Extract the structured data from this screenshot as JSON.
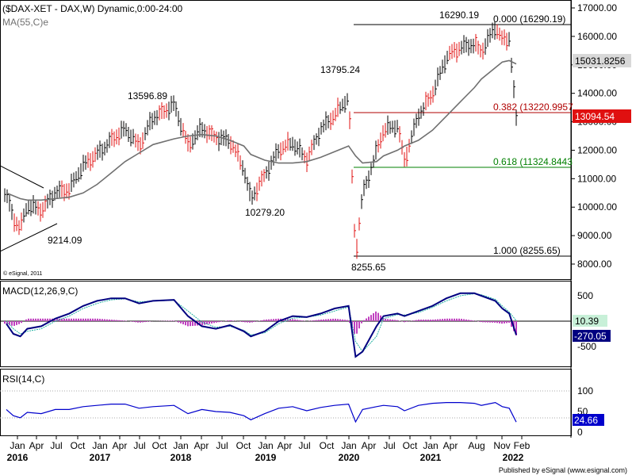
{
  "header": {
    "main_title": "($DAX-XET - DAX,W) Dynamic,0:00-24:00",
    "ma_label": "MA(55,C)e",
    "copyright": "© eSignal, 2011"
  },
  "footer": {
    "publisher": "Published by eSignal (www.esignal.com)"
  },
  "colors": {
    "up_bar": "#000000",
    "down_bar": "#e01010",
    "ma_line": "#707070",
    "macd_line": "#000080",
    "signal_line": "#20b0a0",
    "histogram": "#c040c0",
    "rsi_line": "#0000cc",
    "fib_top": "#000000",
    "fib_382": "#b00000",
    "fib_618": "#008000",
    "price_tag_bg": "#e01010",
    "macd_tag_bg": "#000080",
    "signal_tag_bg": "#c8f0d8",
    "rsi_tag_bg": "#0000cc"
  },
  "price_axis": {
    "ticks": [
      "17000.00",
      "16000.00",
      "15000.00",
      "14000.00",
      "13000.00",
      "12000.00",
      "11000.00",
      "10000.00",
      "9000.00",
      "8000.00"
    ]
  },
  "macd_axis": {
    "ticks": [
      "500",
      "-500"
    ]
  },
  "rsi_axis": {
    "ticks": [
      "100",
      "50",
      "0"
    ]
  },
  "time_axis": {
    "months": [
      "Jan",
      "Apr",
      "Jul",
      "Oct",
      "Jan",
      "Apr",
      "Jul",
      "Oct",
      "Jan",
      "Apr",
      "Jul",
      "Oct",
      "Jan",
      "Apr",
      "Jul",
      "Oct",
      "Jan",
      "Apr",
      "Jul",
      "Oct",
      "Jan",
      "Apr",
      "Aug",
      "Nov",
      "Feb"
    ],
    "years": [
      "2016",
      "2017",
      "2018",
      "2019",
      "2020",
      "2021",
      "2022"
    ]
  },
  "price_panel": {
    "annotations": [
      "16290.19",
      "13596.89",
      "13795.24",
      "10279.20",
      "9214.09",
      "8255.65"
    ],
    "fib_levels": [
      {
        "ratio": "0.000",
        "value": 16290.19,
        "label": "0.000 (16290.19)"
      },
      {
        "ratio": "0.382",
        "value": 13220.9957,
        "label": "0.382 (13220.9957"
      },
      {
        "ratio": "0.618",
        "value": 11324.8443,
        "label": "0.618 (11324.8443"
      },
      {
        "ratio": "1.000",
        "value": 8255.65,
        "label": "1.000 (8255.65)"
      }
    ],
    "current_tags": {
      "ma": "15031.8256",
      "price": "13094.54"
    }
  },
  "macd_panel": {
    "label": "MACD(12,26,9,C)",
    "tags": {
      "signal": "10.39",
      "macd": "-270.05"
    }
  },
  "rsi_panel": {
    "label": "RSI(14,C)",
    "tag": "24.66"
  },
  "chart_data": {
    "type": "line",
    "title": "($DAX-XET - DAX,W) Dynamic,0:00-24:00",
    "x_dates": [
      "2016-01",
      "2016-02",
      "2016-03",
      "2016-04",
      "2016-06",
      "2016-08",
      "2016-10",
      "2016-12",
      "2017-02",
      "2017-04",
      "2017-06",
      "2017-08",
      "2017-10",
      "2018-01",
      "2018-03",
      "2018-05",
      "2018-07",
      "2018-09",
      "2018-11",
      "2018-12",
      "2019-02",
      "2019-04",
      "2019-06",
      "2019-08",
      "2019-10",
      "2019-12",
      "2020-02",
      "2020-03",
      "2020-04",
      "2020-06",
      "2020-07",
      "2020-09",
      "2020-10",
      "2020-12",
      "2021-02",
      "2021-04",
      "2021-06",
      "2021-08",
      "2021-09",
      "2021-11",
      "2021-12",
      "2022-01",
      "2022-02"
    ],
    "price_close": [
      10500,
      9600,
      9214.09,
      10000,
      9900,
      10600,
      10600,
      11400,
      11900,
      12400,
      12700,
      12100,
      13200,
      13596.89,
      12100,
      12800,
      12500,
      12300,
      11300,
      10279.2,
      11200,
      12000,
      12200,
      11700,
      12800,
      13200,
      13795.24,
      8255.65,
      10500,
      12000,
      12700,
      12800,
      11600,
      13300,
      14000,
      15200,
      15600,
      15800,
      15500,
      16290.19,
      15800,
      15900,
      13094.54
    ],
    "ma55_close": [
      10500,
      10400,
      10300,
      10250,
      10250,
      10300,
      10350,
      10500,
      10800,
      11200,
      11600,
      11900,
      12200,
      12400,
      12500,
      12550,
      12500,
      12350,
      12150,
      11850,
      11650,
      11550,
      11550,
      11600,
      11750,
      11950,
      12150,
      11800,
      11550,
      11600,
      11800,
      12000,
      12150,
      12350,
      12700,
      13200,
      13700,
      14200,
      14500,
      14900,
      15100,
      15150,
      15031.8256
    ],
    "fib_retracement": [
      {
        "ratio": 0.0,
        "value": 16290.19
      },
      {
        "ratio": 0.382,
        "value": 13220.9957
      },
      {
        "ratio": 0.618,
        "value": 11324.8443
      },
      {
        "ratio": 1.0,
        "value": 8255.65
      }
    ],
    "macd": [
      -50,
      -250,
      -300,
      -150,
      -100,
      50,
      150,
      300,
      400,
      450,
      450,
      350,
      400,
      420,
      100,
      -100,
      -150,
      -80,
      -200,
      -300,
      -200,
      0,
      100,
      80,
      150,
      250,
      300,
      -700,
      -600,
      -100,
      100,
      150,
      100,
      200,
      300,
      450,
      550,
      550,
      500,
      400,
      250,
      150,
      -270.05
    ],
    "macd_signal": [
      0,
      -150,
      -250,
      -200,
      -150,
      0,
      100,
      250,
      350,
      420,
      440,
      380,
      400,
      410,
      200,
      -20,
      -120,
      -100,
      -180,
      -270,
      -230,
      -50,
      60,
      80,
      120,
      200,
      280,
      -400,
      -600,
      -300,
      50,
      130,
      120,
      170,
      270,
      400,
      500,
      540,
      520,
      430,
      300,
      180,
      10.39
    ],
    "rsi": [
      55,
      40,
      35,
      48,
      45,
      55,
      55,
      62,
      65,
      68,
      68,
      58,
      62,
      65,
      45,
      55,
      50,
      48,
      40,
      30,
      45,
      58,
      62,
      52,
      60,
      65,
      68,
      25,
      55,
      62,
      65,
      62,
      52,
      65,
      70,
      72,
      72,
      70,
      65,
      72,
      62,
      58,
      24.66
    ],
    "ylim_price": [
      7800,
      17300
    ],
    "ylim_macd": [
      -800,
      800
    ],
    "ylim_rsi": [
      0,
      100
    ]
  }
}
